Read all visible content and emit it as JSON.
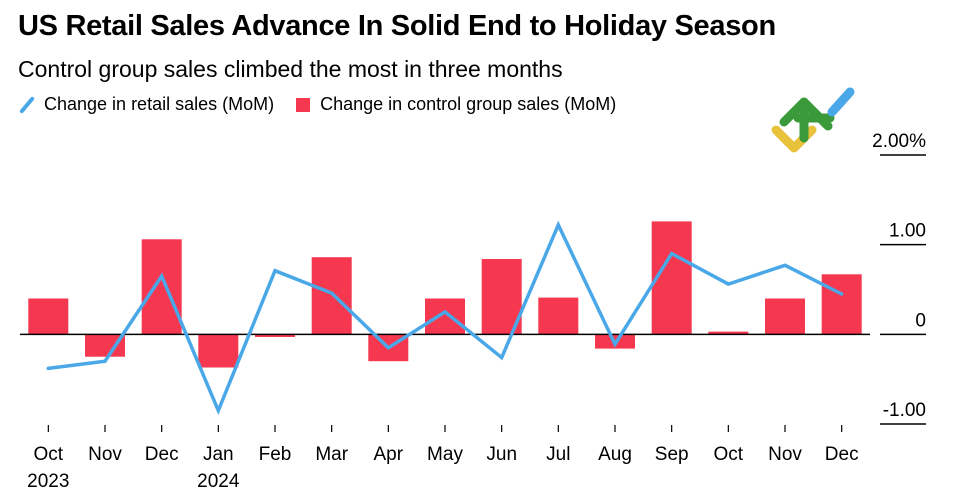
{
  "chart_data": {
    "type": "bar",
    "title": "US Retail Sales Advance In Solid End to Holiday Season",
    "subtitle": "Control group sales climbed the most in three months",
    "legend": [
      {
        "name": "Change in retail sales (MoM)",
        "kind": "line",
        "color": "#4aa8e8"
      },
      {
        "name": "Change in control group sales (MoM)",
        "kind": "bar",
        "color": "#f5374f"
      }
    ],
    "categories": [
      "Oct",
      "Nov",
      "Dec",
      "Jan",
      "Feb",
      "Mar",
      "Apr",
      "May",
      "Jun",
      "Jul",
      "Aug",
      "Sep",
      "Oct",
      "Nov",
      "Dec"
    ],
    "year_labels": [
      "2023",
      "",
      "",
      "2024",
      "",
      "",
      "",
      "",
      "",
      "",
      "",
      "",
      "",
      "",
      ""
    ],
    "series": [
      {
        "name": "Change in control group sales (MoM)",
        "type": "bar",
        "values": [
          0.4,
          -0.25,
          1.06,
          -0.37,
          -0.03,
          0.86,
          -0.3,
          0.4,
          0.84,
          0.41,
          -0.16,
          1.26,
          0.03,
          0.4,
          0.67
        ]
      },
      {
        "name": "Change in retail sales (MoM)",
        "type": "line",
        "values": [
          -0.38,
          -0.3,
          0.65,
          -0.85,
          0.71,
          0.46,
          -0.15,
          0.25,
          -0.26,
          1.22,
          -0.11,
          0.9,
          0.56,
          0.77,
          0.45
        ]
      }
    ],
    "y_ticks": [
      {
        "value": 2.0,
        "label": "2.00%"
      },
      {
        "value": 1.0,
        "label": "1.00"
      },
      {
        "value": 0.0,
        "label": "0"
      },
      {
        "value": -1.0,
        "label": "-1.00"
      }
    ],
    "ylim": [
      -1.0,
      2.0
    ],
    "ylabel": "",
    "xlabel": "",
    "y_axis_side": "right",
    "grid": false
  }
}
